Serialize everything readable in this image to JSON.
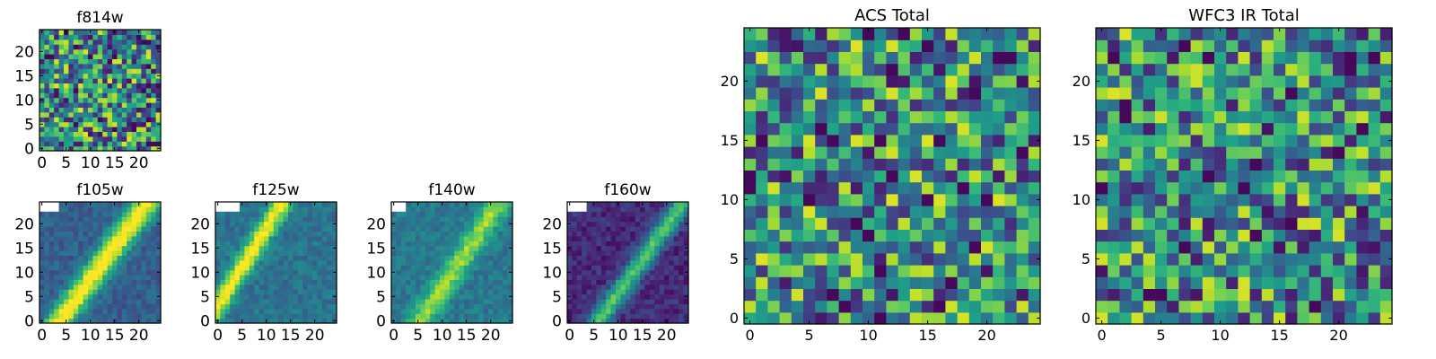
{
  "chart_data": [
    {
      "type": "heatmap",
      "title": "f814w",
      "rows": 25,
      "cols": 25,
      "xticks": [
        "0",
        "5",
        "10",
        "15",
        "20"
      ],
      "yticks": [
        "0",
        "5",
        "10",
        "15",
        "20"
      ],
      "xlim": [
        0,
        25
      ],
      "ylim": [
        0,
        25
      ],
      "colormap": "viridis",
      "pattern": "noise"
    },
    {
      "type": "heatmap",
      "title": "f105w",
      "rows": 25,
      "cols": 25,
      "xticks": [
        "0",
        "5",
        "10",
        "15",
        "20"
      ],
      "yticks": [
        "0",
        "5",
        "10",
        "15",
        "20"
      ],
      "xlim": [
        0,
        25
      ],
      "ylim": [
        0,
        25
      ],
      "colormap": "viridis",
      "pattern": "diagonal-streak"
    },
    {
      "type": "heatmap",
      "title": "f125w",
      "rows": 25,
      "cols": 25,
      "xticks": [
        "0",
        "5",
        "10",
        "15",
        "20"
      ],
      "yticks": [
        "0",
        "5",
        "10",
        "15",
        "20"
      ],
      "xlim": [
        0,
        25
      ],
      "ylim": [
        0,
        25
      ],
      "colormap": "viridis",
      "pattern": "diagonal-streak"
    },
    {
      "type": "heatmap",
      "title": "f140w",
      "rows": 25,
      "cols": 25,
      "xticks": [
        "0",
        "5",
        "10",
        "15",
        "20"
      ],
      "yticks": [
        "0",
        "5",
        "10",
        "15",
        "20"
      ],
      "xlim": [
        0,
        25
      ],
      "ylim": [
        0,
        25
      ],
      "colormap": "viridis",
      "pattern": "diagonal-streak"
    },
    {
      "type": "heatmap",
      "title": "f160w",
      "rows": 25,
      "cols": 25,
      "xticks": [
        "0",
        "5",
        "10",
        "15",
        "20"
      ],
      "yticks": [
        "0",
        "5",
        "10",
        "15",
        "20"
      ],
      "xlim": [
        0,
        25
      ],
      "ylim": [
        0,
        25
      ],
      "colormap": "viridis",
      "pattern": "diagonal-streak"
    },
    {
      "type": "heatmap",
      "title": "ACS Total",
      "rows": 25,
      "cols": 25,
      "xticks": [
        "0",
        "5",
        "10",
        "15",
        "20"
      ],
      "yticks": [
        "0",
        "5",
        "10",
        "15",
        "20"
      ],
      "xlim": [
        0,
        25
      ],
      "ylim": [
        0,
        25
      ],
      "colormap": "viridis",
      "pattern": "noise"
    },
    {
      "type": "heatmap",
      "title": "WFC3 IR Total",
      "rows": 25,
      "cols": 25,
      "xticks": [
        "0",
        "5",
        "10",
        "15",
        "20"
      ],
      "yticks": [
        "0",
        "5",
        "10",
        "15",
        "20"
      ],
      "xlim": [
        0,
        25
      ],
      "ylim": [
        0,
        25
      ],
      "colormap": "viridis",
      "pattern": "noise"
    }
  ]
}
